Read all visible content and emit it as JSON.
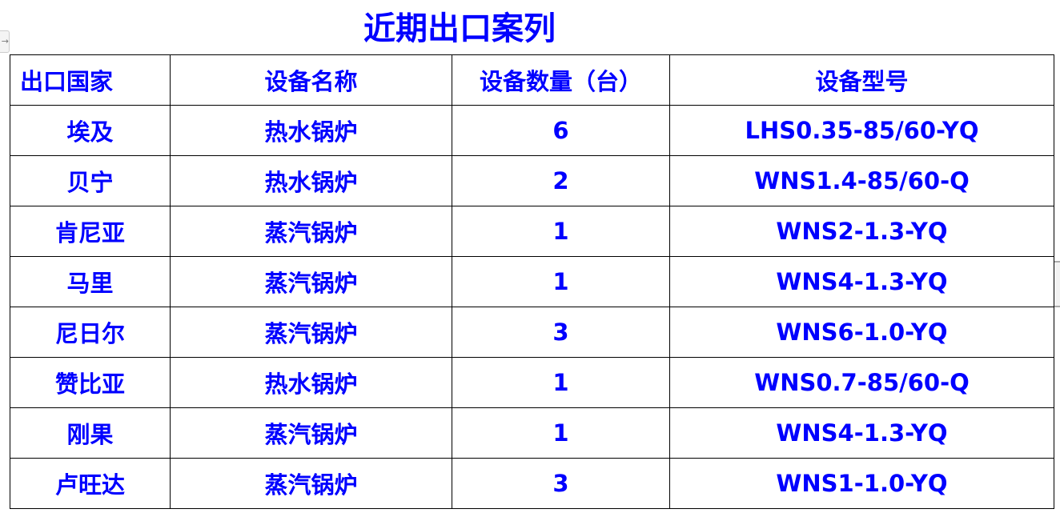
{
  "title": "近期出口案列",
  "headers": [
    "出口国家",
    "设备名称",
    "设备数量（台）",
    "设备型号"
  ],
  "rows": [
    [
      "埃及",
      "热水锅炉",
      "6",
      "LHS0.35-85/60-YQ"
    ],
    [
      "贝宁",
      "热水锅炉",
      "2",
      "WNS1.4-85/60-Q"
    ],
    [
      "肯尼亚",
      "蒸汽锅炉",
      "1",
      "WNS2-1.3-YQ"
    ],
    [
      "马里",
      "蒸汽锅炉",
      "1",
      "WNS4-1.3-YQ"
    ],
    [
      "尼日尔",
      "蒸汽锅炉",
      "3",
      "WNS6-1.0-YQ"
    ],
    [
      "赞比亚",
      "热水锅炉",
      "1",
      "WNS0.7-85/60-Q"
    ],
    [
      "刚果",
      "蒸汽锅炉",
      "1",
      "WNS4-1.3-YQ"
    ],
    [
      "卢旺达",
      "蒸汽锅炉",
      "3",
      "WNS1-1.0-YQ"
    ]
  ],
  "colors": {
    "text": "#0000ff",
    "border": "#000000"
  }
}
